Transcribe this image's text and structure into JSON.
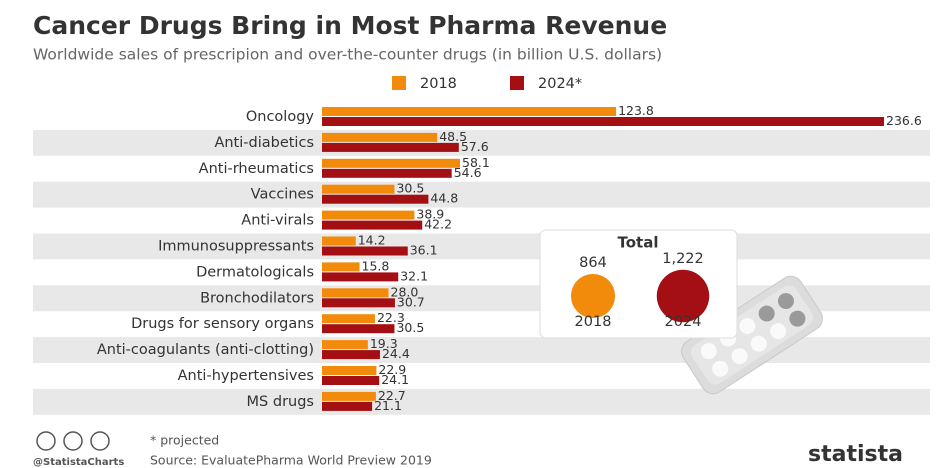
{
  "chart_data": {
    "type": "bar",
    "orientation": "horizontal",
    "title": "Cancer Drugs Bring in Most Pharma Revenue",
    "subtitle": "Worldwide sales of prescripion and over-the-counter drugs (in billion U.S. dollars)",
    "categories": [
      "Oncology",
      "Anti-diabetics",
      "Anti-rheumatics",
      "Vaccines",
      "Anti-virals",
      "Immunosuppressants",
      "Dermatologicals",
      "Bronchodilators",
      "Drugs for sensory organs",
      "Anti-coagulants (anti-clotting)",
      "Anti-hypertensives",
      "MS drugs"
    ],
    "series": [
      {
        "name": "2018",
        "color": "#f28a0c",
        "values": [
          123.8,
          48.5,
          58.1,
          30.5,
          38.9,
          14.2,
          15.8,
          28.0,
          22.3,
          19.3,
          22.9,
          22.7
        ],
        "value_labels": [
          "123.8",
          "48.5",
          "58.1",
          "30.5",
          "38.9",
          "14.2",
          "15.8",
          "28.0",
          "22.3",
          "19.3",
          "22.9",
          "22.7"
        ]
      },
      {
        "name": "2024*",
        "color": "#a30f12",
        "values": [
          236.6,
          57.6,
          54.6,
          44.8,
          42.2,
          36.1,
          32.1,
          30.7,
          30.5,
          24.4,
          24.1,
          21.1
        ]
      }
    ],
    "totals": {
      "title": "Total",
      "items": [
        {
          "label": "2018",
          "value": 864,
          "value_label": "864",
          "color": "#f28a0c"
        },
        {
          "label": "2024",
          "value": 1222,
          "value_label": "1,222",
          "color": "#a30f12"
        }
      ]
    },
    "note": "* projected",
    "credit": "@StatistaCharts",
    "source": "Source: EvaluatePharma World Preview 2019",
    "brand": "statista"
  }
}
